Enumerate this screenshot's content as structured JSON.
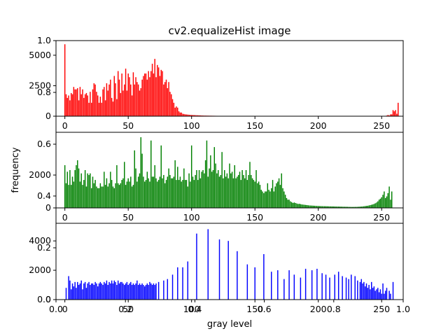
{
  "chart_data": {
    "type": "bar",
    "title": "cv2.equalizeHist image",
    "xlabel": "gray level",
    "ylabel": "frequency",
    "outer_axis": {
      "xticks": [
        "0.0",
        "0.2",
        "0.4",
        "0.6",
        "0.8",
        "1.0"
      ],
      "yticks": [
        "0.0",
        "0.2",
        "0.4",
        "0.6",
        "0.8",
        "1.0"
      ]
    },
    "panels": [
      {
        "color": "#ff0000",
        "xlim": [
          -7,
          267
        ],
        "ylim": [
          0,
          6200
        ],
        "xticks": [
          {
            "v": 0,
            "t": "0"
          },
          {
            "v": 50,
            "t": "50"
          },
          {
            "v": 100,
            "t": "100"
          },
          {
            "v": 150,
            "t": "150"
          },
          {
            "v": 200,
            "t": "200"
          },
          {
            "v": 250,
            "t": "250"
          }
        ],
        "yticks": [
          {
            "v": 0,
            "t": "0"
          },
          {
            "v": 2500,
            "t": "2500"
          },
          {
            "v": 5000,
            "t": "5000"
          }
        ],
        "values": [
          5900,
          1800,
          1500,
          1700,
          1300,
          1900,
          1800,
          2400,
          2200,
          2200,
          2300,
          1300,
          2400,
          1800,
          2200,
          1500,
          1800,
          1900,
          1700,
          1100,
          2000,
          1100,
          2200,
          2700,
          2600,
          2000,
          1700,
          1100,
          1600,
          1100,
          2200,
          2400,
          1300,
          2700,
          2100,
          2600,
          3000,
          1500,
          1200,
          3300,
          2700,
          1400,
          3700,
          3000,
          1900,
          3500,
          2100,
          2600,
          3900,
          2100,
          3500,
          3200,
          2600,
          1700,
          3600,
          2600,
          3200,
          2800,
          2600,
          2100,
          2300,
          3000,
          3300,
          3500,
          3500,
          3000,
          3700,
          3200,
          3700,
          4300,
          3500,
          4700,
          3200,
          4200,
          4000,
          3300,
          3800,
          3700,
          2600,
          2800,
          3000,
          2300,
          2800,
          2000,
          1800,
          1400,
          1100,
          700,
          800,
          700,
          400,
          300,
          300,
          200,
          180,
          150,
          140,
          130,
          120,
          110,
          100,
          95,
          90,
          85,
          80,
          75,
          70,
          65,
          60,
          55,
          50,
          48,
          46,
          44,
          42,
          40,
          38,
          36,
          34,
          32,
          30,
          28,
          26,
          24,
          22,
          20,
          19,
          18,
          17,
          16,
          15,
          14,
          13,
          12,
          11,
          10,
          10,
          9,
          9,
          8,
          8,
          7,
          7,
          6,
          6,
          6,
          5,
          5,
          5,
          4,
          4,
          4,
          4,
          3,
          3,
          3,
          3,
          2,
          2,
          2,
          2,
          2,
          2,
          1,
          1,
          1,
          1,
          1,
          1,
          1,
          1,
          1,
          1,
          1,
          1,
          1,
          1,
          1,
          1,
          1,
          1,
          1,
          1,
          1,
          1,
          1,
          1,
          1,
          1,
          1,
          1,
          1,
          1,
          1,
          1,
          1,
          1,
          1,
          1,
          1,
          1,
          1,
          1,
          1,
          1,
          1,
          1,
          1,
          1,
          1,
          1,
          1,
          1,
          1,
          1,
          1,
          1,
          1,
          1,
          1,
          1,
          1,
          1,
          1,
          1,
          1,
          1,
          1,
          1,
          1,
          1,
          1,
          1,
          1,
          1,
          1,
          1,
          1,
          2,
          2,
          3,
          3,
          3,
          4,
          4,
          4,
          5,
          5,
          6,
          7,
          8,
          9,
          10,
          15,
          50,
          100,
          60,
          150,
          150,
          500,
          400,
          500,
          200,
          1100
        ]
      },
      {
        "color": "#008000",
        "xlim": [
          -7,
          267
        ],
        "ylim": [
          0,
          4600
        ],
        "xticks": [
          {
            "v": 0,
            "t": "0"
          },
          {
            "v": 50,
            "t": "50"
          },
          {
            "v": 100,
            "t": "100"
          },
          {
            "v": 150,
            "t": "150"
          },
          {
            "v": 200,
            "t": "200"
          },
          {
            "v": 250,
            "t": "250"
          }
        ],
        "yticks": [
          {
            "v": 0,
            "t": "0"
          },
          {
            "v": 2000,
            "t": "2000"
          }
        ],
        "values": [
          2600,
          1500,
          2200,
          1400,
          2300,
          1400,
          1900,
          1600,
          2300,
          2600,
          2900,
          2400,
          1600,
          2100,
          1400,
          1700,
          2300,
          1300,
          2100,
          2000,
          2100,
          1200,
          1900,
          1500,
          1700,
          1300,
          1200,
          1200,
          1500,
          1300,
          1300,
          2200,
          1400,
          1800,
          1300,
          1500,
          2200,
          1700,
          1300,
          1200,
          1500,
          2600,
          1500,
          1400,
          1500,
          1700,
          1800,
          2800,
          1400,
          1600,
          1800,
          1600,
          1900,
          1300,
          1400,
          3500,
          2400,
          1600,
          1900,
          2100,
          4300,
          3300,
          1900,
          1600,
          1700,
          2200,
          1800,
          1600,
          4100,
          1900,
          1900,
          2600,
          1800,
          1600,
          1700,
          1900,
          3800,
          1800,
          2000,
          1500,
          1700,
          1900,
          2400,
          2000,
          1800,
          1800,
          1900,
          2900,
          1700,
          2500,
          1700,
          1900,
          1600,
          1700,
          2400,
          1700,
          1700,
          1300,
          2100,
          1600,
          3800,
          1900,
          1700,
          2000,
          2300,
          1700,
          2300,
          1800,
          2200,
          2300,
          2100,
          2900,
          4100,
          1900,
          2400,
          3200,
          2200,
          2300,
          3700,
          2700,
          2100,
          2300,
          1900,
          2000,
          3400,
          1800,
          2300,
          1900,
          2100,
          1800,
          2700,
          2100,
          2200,
          1800,
          2600,
          1800,
          1900,
          2000,
          2200,
          1700,
          2300,
          2000,
          1800,
          2300,
          1700,
          2000,
          2800,
          2000,
          1800,
          1700,
          1600,
          2300,
          1500,
          1600,
          1400,
          1100,
          1000,
          900,
          1000,
          1000,
          1500,
          1100,
          1000,
          1200,
          1700,
          1000,
          1300,
          1500,
          1600,
          1800,
          1400,
          2100,
          1200,
          1000,
          800,
          600,
          500,
          500,
          400,
          350,
          300,
          330,
          300,
          270,
          240,
          250,
          230,
          210,
          200,
          190,
          180,
          170,
          160,
          150,
          145,
          140,
          135,
          130,
          125,
          120,
          115,
          110,
          108,
          106,
          104,
          102,
          100,
          98,
          96,
          94,
          92,
          90,
          88,
          86,
          84,
          82,
          80,
          78,
          76,
          74,
          72,
          70,
          68,
          66,
          64,
          62,
          60,
          58,
          60,
          62,
          64,
          66,
          70,
          75,
          80,
          90,
          100,
          110,
          120,
          130,
          150,
          170,
          190,
          210,
          240,
          280,
          330,
          400,
          500,
          560,
          650,
          800,
          1000,
          600,
          700,
          900,
          1300,
          500,
          1000
        ]
      },
      {
        "color": "#0000ff",
        "xlim": [
          -7,
          267
        ],
        "ylim": [
          0,
          5200
        ],
        "xticks": [
          {
            "v": 0,
            "t": "0"
          },
          {
            "v": 50,
            "t": "50"
          },
          {
            "v": 100,
            "t": "100"
          },
          {
            "v": 150,
            "t": "150"
          },
          {
            "v": 200,
            "t": "200"
          },
          {
            "v": 250,
            "t": "250"
          }
        ],
        "yticks": [
          {
            "v": 0,
            "t": "0"
          },
          {
            "v": 2000,
            "t": "2000"
          },
          {
            "v": 4000,
            "t": "4000"
          }
        ],
        "values": [
          0,
          800,
          0,
          1600,
          1300,
          700,
          1100,
          900,
          1200,
          800,
          1200,
          1000,
          1100,
          1300,
          700,
          1100,
          1200,
          800,
          1100,
          1200,
          1000,
          1100,
          1100,
          1000,
          1200,
          1100,
          900,
          1100,
          1200,
          1100,
          1000,
          1200,
          1100,
          1300,
          1000,
          1200,
          1100,
          1300,
          1100,
          1300,
          1200,
          1000,
          1300,
          1100,
          1200,
          1200,
          1100,
          1000,
          1100,
          1200,
          1000,
          1100,
          1200,
          1000,
          1100,
          1000,
          1100,
          1300,
          1000,
          1100,
          1000,
          1100,
          1000,
          900,
          1000,
          1100,
          1000,
          1200,
          1100,
          1000,
          1100,
          1000,
          1100,
          0,
          1200,
          0,
          0,
          0,
          1300,
          0,
          0,
          1400,
          0,
          0,
          0,
          1700,
          0,
          0,
          0,
          2200,
          0,
          0,
          0,
          2200,
          0,
          0,
          0,
          2600,
          0,
          0,
          0,
          0,
          0,
          0,
          4500,
          0,
          0,
          0,
          0,
          0,
          0,
          0,
          0,
          4800,
          0,
          0,
          0,
          0,
          0,
          0,
          0,
          0,
          4100,
          0,
          0,
          0,
          0,
          0,
          0,
          4000,
          0,
          0,
          0,
          0,
          0,
          0,
          3300,
          0,
          0,
          0,
          0,
          0,
          0,
          0,
          2400,
          0,
          0,
          0,
          0,
          0,
          2200,
          0,
          0,
          0,
          0,
          0,
          0,
          3100,
          0,
          0,
          0,
          0,
          0,
          1900,
          0,
          0,
          0,
          0,
          2000,
          0,
          0,
          0,
          0,
          1400,
          0,
          0,
          0,
          2000,
          0,
          0,
          0,
          1700,
          0,
          0,
          0,
          0,
          1500,
          0,
          0,
          0,
          2100,
          0,
          0,
          0,
          0,
          2000,
          0,
          0,
          0,
          2100,
          0,
          0,
          0,
          1800,
          0,
          0,
          1700,
          0,
          0,
          1500,
          0,
          0,
          0,
          1700,
          0,
          0,
          1900,
          0,
          0,
          1600,
          0,
          0,
          1500,
          0,
          1400,
          0,
          1700,
          0,
          0,
          1600,
          0,
          1300,
          0,
          1200,
          1400,
          1100,
          1200,
          900,
          1100,
          800,
          1000,
          700,
          1200,
          800,
          900,
          600,
          700,
          800,
          500,
          700,
          400,
          1100,
          400,
          600,
          800,
          0,
          600,
          400,
          0,
          1200
        ]
      }
    ]
  }
}
